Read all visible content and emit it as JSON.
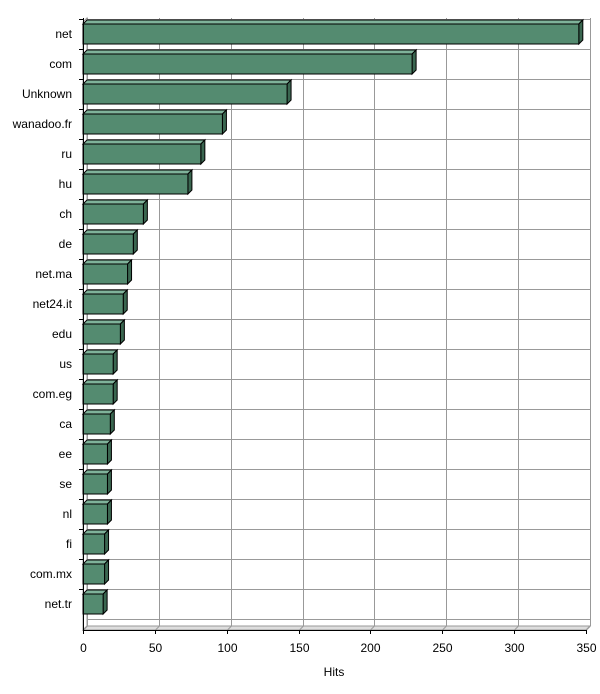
{
  "chart_data": {
    "type": "bar",
    "orientation": "horizontal",
    "categories": [
      "net",
      "com",
      "Unknown",
      "wanadoo.fr",
      "ru",
      "hu",
      "ch",
      "de",
      "net.ma",
      "net24.it",
      "edu",
      "us",
      "com.eg",
      "ca",
      "ee",
      "se",
      "nl",
      "fi",
      "com.mx",
      "net.tr"
    ],
    "values": [
      345,
      229,
      142,
      97,
      82,
      73,
      42,
      35,
      31,
      28,
      26,
      21,
      21,
      19,
      17,
      17,
      17,
      15,
      15,
      14
    ],
    "xlabel": "Hits",
    "ylabel": "",
    "xlim": [
      0,
      350
    ],
    "xticks": [
      0,
      50,
      100,
      150,
      200,
      250,
      300,
      350
    ],
    "grid": true,
    "legend": "none",
    "bar_color": "#548b70",
    "bar_top_color": "#7fb39a",
    "bar_side_color": "#3a6650",
    "outline_color": "#000000",
    "grid_color": "#999999"
  }
}
